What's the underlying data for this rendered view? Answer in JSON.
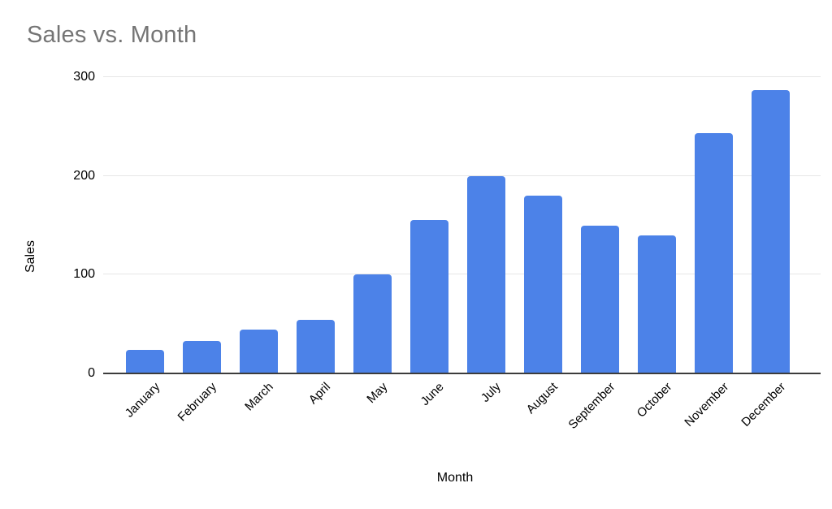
{
  "chart_data": {
    "type": "bar",
    "title": "Sales vs. Month",
    "xlabel": "Month",
    "ylabel": "Sales",
    "categories": [
      "January",
      "February",
      "March",
      "April",
      "May",
      "June",
      "July",
      "August",
      "September",
      "October",
      "November",
      "December"
    ],
    "values": [
      24,
      33,
      44,
      54,
      100,
      155,
      200,
      180,
      150,
      140,
      243,
      287
    ],
    "ylim": [
      0,
      300
    ],
    "yticks": [
      0,
      100,
      200,
      300
    ],
    "grid": true,
    "legend": false,
    "bar_color": "#4c82e8",
    "title_color": "#757575",
    "gridline_color": "#e6e6e6",
    "axis_line_color": "#3c3c3c",
    "label_color": "#000000"
  }
}
